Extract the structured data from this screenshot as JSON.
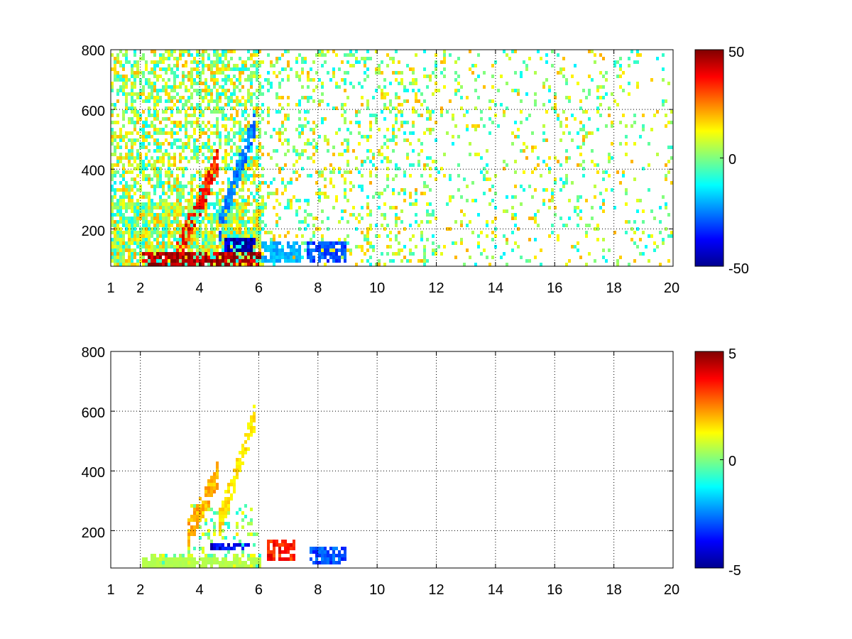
{
  "chart_data": [
    {
      "type": "heatmap",
      "title": "",
      "xlabel": "",
      "ylabel": "",
      "xlim": [
        1,
        20
      ],
      "ylim": [
        75,
        800
      ],
      "xticks": [
        "1",
        "2",
        "4",
        "6",
        "8",
        "10",
        "12",
        "14",
        "16",
        "18",
        "20"
      ],
      "xtick_values": [
        1,
        2,
        4,
        6,
        8,
        10,
        12,
        14,
        16,
        18,
        20
      ],
      "yticks": [
        "200",
        "400",
        "600",
        "800"
      ],
      "ytick_values": [
        200,
        400,
        600,
        800
      ],
      "grid": true,
      "colormap": "jet",
      "colorbar": {
        "range": [
          -50,
          50
        ],
        "ticks": [
          "50",
          "0",
          "-50"
        ],
        "tick_values": [
          50,
          0,
          -50
        ]
      },
      "features": [
        {
          "kind": "ridge",
          "x_start": 3.2,
          "x_end": 4.6,
          "y_start": 120,
          "y_end": 440,
          "value": 35
        },
        {
          "kind": "ridge",
          "x_start": 4.6,
          "x_end": 5.8,
          "y_start": 200,
          "y_end": 560,
          "value": -25
        },
        {
          "kind": "band",
          "x_start": 2.0,
          "x_end": 6.0,
          "y_low": 80,
          "y_high": 130,
          "value": 45
        },
        {
          "kind": "band",
          "x_start": 4.8,
          "x_end": 5.8,
          "y_low": 130,
          "y_high": 180,
          "value": -45
        },
        {
          "kind": "band",
          "x_start": 6.0,
          "x_end": 7.4,
          "y_low": 90,
          "y_high": 160,
          "value": -20
        },
        {
          "kind": "band",
          "x_start": 7.6,
          "x_end": 8.9,
          "y_low": 90,
          "y_high": 170,
          "value": -30
        }
      ]
    },
    {
      "type": "heatmap",
      "title": "",
      "xlabel": "",
      "ylabel": "",
      "xlim": [
        1,
        20
      ],
      "ylim": [
        75,
        800
      ],
      "xticks": [
        "1",
        "2",
        "4",
        "6",
        "8",
        "10",
        "12",
        "14",
        "16",
        "18",
        "20"
      ],
      "xtick_values": [
        1,
        2,
        4,
        6,
        8,
        10,
        12,
        14,
        16,
        18,
        20
      ],
      "yticks": [
        "200",
        "400",
        "600",
        "800"
      ],
      "ytick_values": [
        200,
        400,
        600,
        800
      ],
      "grid": true,
      "colormap": "jet",
      "colorbar": {
        "range": [
          -5,
          5
        ],
        "ticks": [
          "5",
          "0",
          "-5"
        ],
        "tick_values": [
          5,
          0,
          -5
        ]
      },
      "features": [
        {
          "kind": "ridge",
          "x_start": 3.5,
          "x_end": 4.6,
          "y_start": 180,
          "y_end": 400,
          "value": 2
        },
        {
          "kind": "ridge",
          "x_start": 4.6,
          "x_end": 5.8,
          "y_start": 220,
          "y_end": 580,
          "value": 1.5
        },
        {
          "kind": "band",
          "x_start": 2.0,
          "x_end": 6.0,
          "y_low": 85,
          "y_high": 120,
          "value": 0.5
        },
        {
          "kind": "band",
          "x_start": 4.3,
          "x_end": 5.7,
          "y_low": 140,
          "y_high": 170,
          "value": -4
        },
        {
          "kind": "band",
          "x_start": 6.2,
          "x_end": 7.2,
          "y_low": 110,
          "y_high": 180,
          "value": 3.5
        },
        {
          "kind": "band",
          "x_start": 7.7,
          "x_end": 8.9,
          "y_low": 95,
          "y_high": 150,
          "value": -3
        }
      ]
    }
  ]
}
